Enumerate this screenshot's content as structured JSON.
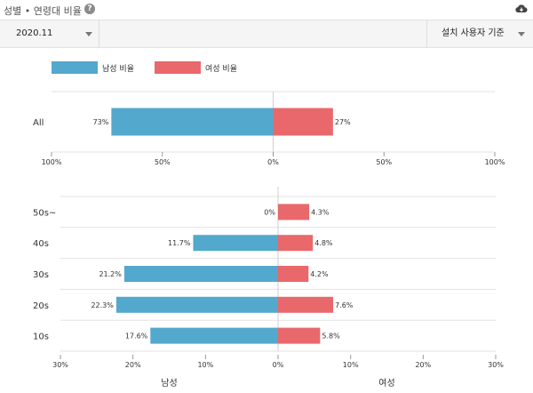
{
  "header": {
    "title": "성별 • 연령대 비율",
    "help_icon": "question-circle-icon",
    "download_icon": "cloud-download-icon"
  },
  "filters": {
    "period": "2020.11",
    "basis": "설치 사용자 기준"
  },
  "legend": {
    "male": "남성 비율",
    "female": "여성 비율"
  },
  "colors": {
    "male": "#53a8cd",
    "female": "#e9686b"
  },
  "chart_data": [
    {
      "type": "bar",
      "orientation": "horizontal-diverging",
      "categories": [
        "All"
      ],
      "series": [
        {
          "name": "남성 비율",
          "values": [
            73
          ]
        },
        {
          "name": "여성 비율",
          "values": [
            27
          ]
        }
      ],
      "xlim": [
        -100,
        100
      ],
      "xticks": [
        "100%",
        "50%",
        "0%",
        "50%",
        "100%"
      ],
      "value_labels": {
        "male": [
          "73%"
        ],
        "female": [
          "27%"
        ]
      }
    },
    {
      "type": "bar",
      "orientation": "horizontal-diverging",
      "categories": [
        "50s~",
        "40s",
        "30s",
        "20s",
        "10s"
      ],
      "series": [
        {
          "name": "남성",
          "values": [
            0,
            11.7,
            21.2,
            22.3,
            17.6
          ]
        },
        {
          "name": "여성",
          "values": [
            4.3,
            4.8,
            4.2,
            7.6,
            5.8
          ]
        }
      ],
      "xlim": [
        -30,
        30
      ],
      "xticks": [
        "30%",
        "20%",
        "10%",
        "0%",
        "10%",
        "20%",
        "30%"
      ],
      "value_labels": {
        "male": [
          "0%",
          "11.7%",
          "21.2%",
          "22.3%",
          "17.6%"
        ],
        "female": [
          "4.3%",
          "4.8%",
          "4.2%",
          "7.6%",
          "5.8%"
        ]
      },
      "xlabels": {
        "male": "남성",
        "female": "여성"
      }
    }
  ]
}
